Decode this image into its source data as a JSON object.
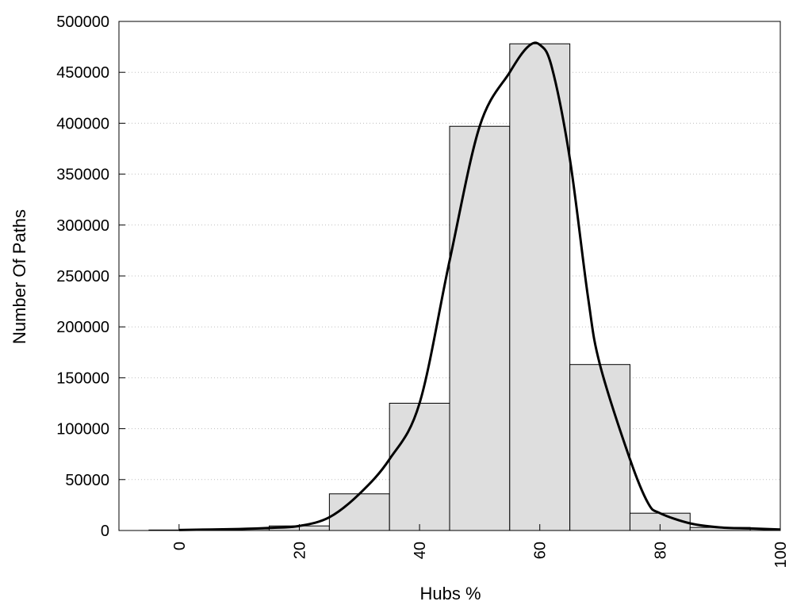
{
  "chart_data": {
    "type": "bar",
    "title": "",
    "xlabel": "Hubs %",
    "ylabel": "Number Of Paths",
    "xlim": [
      -10,
      100
    ],
    "ylim": [
      0,
      500000
    ],
    "x_ticks": [
      0,
      20,
      40,
      60,
      80,
      100
    ],
    "y_ticks": [
      0,
      50000,
      100000,
      150000,
      200000,
      250000,
      300000,
      350000,
      400000,
      450000,
      500000
    ],
    "grid": "horizontal-dotted",
    "bar_width": 10,
    "bars": [
      {
        "x": 0,
        "value": 500
      },
      {
        "x": 10,
        "value": 1500
      },
      {
        "x": 20,
        "value": 4500
      },
      {
        "x": 30,
        "value": 36000
      },
      {
        "x": 40,
        "value": 125000
      },
      {
        "x": 50,
        "value": 397000
      },
      {
        "x": 60,
        "value": 478000
      },
      {
        "x": 70,
        "value": 163000
      },
      {
        "x": 80,
        "value": 17000
      },
      {
        "x": 90,
        "value": 3000
      }
    ],
    "curve": [
      {
        "x": 0,
        "y": 500
      },
      {
        "x": 10,
        "y": 1500
      },
      {
        "x": 15,
        "y": 2500
      },
      {
        "x": 20,
        "y": 4500
      },
      {
        "x": 25,
        "y": 13000
      },
      {
        "x": 30,
        "y": 36000
      },
      {
        "x": 35,
        "y": 70000
      },
      {
        "x": 40,
        "y": 125000
      },
      {
        "x": 45,
        "y": 265000
      },
      {
        "x": 50,
        "y": 397000
      },
      {
        "x": 55,
        "y": 450000
      },
      {
        "x": 58,
        "y": 475000
      },
      {
        "x": 60,
        "y": 477000
      },
      {
        "x": 62,
        "y": 455000
      },
      {
        "x": 65,
        "y": 365000
      },
      {
        "x": 68,
        "y": 230000
      },
      {
        "x": 70,
        "y": 163000
      },
      {
        "x": 75,
        "y": 70000
      },
      {
        "x": 78,
        "y": 27000
      },
      {
        "x": 80,
        "y": 17000
      },
      {
        "x": 85,
        "y": 7000
      },
      {
        "x": 90,
        "y": 3000
      },
      {
        "x": 95,
        "y": 2000
      },
      {
        "x": 100,
        "y": 1000
      }
    ],
    "colors": {
      "bar_fill": "#dedede",
      "bar_stroke": "#000000",
      "curve": "#000000",
      "grid": "#bfbfbf"
    }
  }
}
